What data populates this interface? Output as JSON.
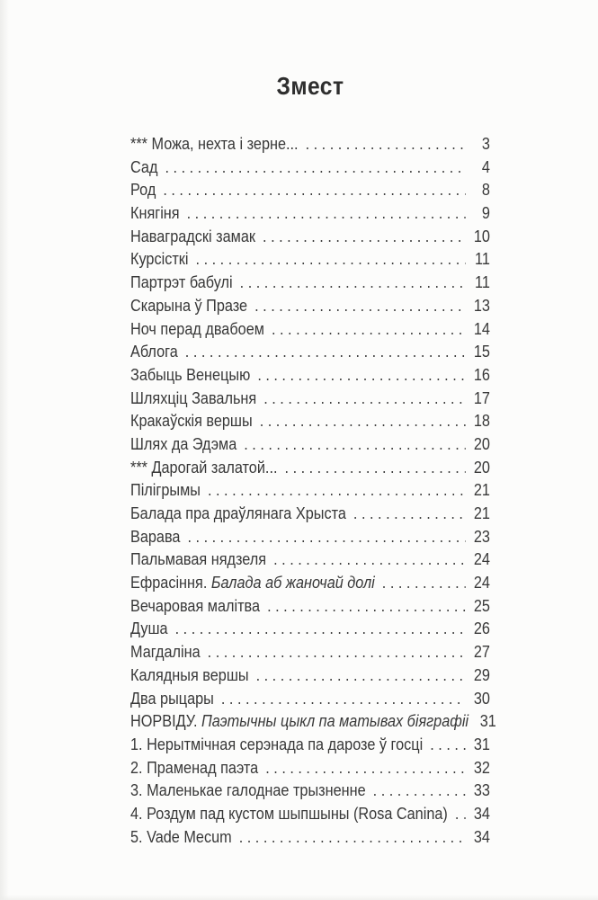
{
  "page": {
    "title": "Змест",
    "toc": {
      "entries": [
        {
          "text": "*** Можа, нехта і зерне...",
          "italic": "",
          "page": "3"
        },
        {
          "text": "Сад",
          "italic": "",
          "page": "4"
        },
        {
          "text": "Род",
          "italic": "",
          "page": "8"
        },
        {
          "text": "Княгіня",
          "italic": "",
          "page": "9"
        },
        {
          "text": "Наваградскі замак",
          "italic": "",
          "page": "10"
        },
        {
          "text": "Курсісткі",
          "italic": "",
          "page": "11"
        },
        {
          "text": "Партрэт бабулі",
          "italic": "",
          "page": "11"
        },
        {
          "text": "Скарына ў Празе",
          "italic": "",
          "page": "13"
        },
        {
          "text": "Ноч перад двабоем",
          "italic": "",
          "page": "14"
        },
        {
          "text": "Аблога",
          "italic": "",
          "page": "15"
        },
        {
          "text": "Забыць Венецыю",
          "italic": "",
          "page": "16"
        },
        {
          "text": "Шляхціц Завальня",
          "italic": "",
          "page": "17"
        },
        {
          "text": "Кракаўскія вершы",
          "italic": "",
          "page": "18"
        },
        {
          "text": "Шлях да Эдэма",
          "italic": "",
          "page": "20"
        },
        {
          "text": "*** Дарогай залатой...",
          "italic": "",
          "page": "20"
        },
        {
          "text": "Пілігрымы",
          "italic": "",
          "page": "21"
        },
        {
          "text": "Балада пра драўлянага Хрыста",
          "italic": "",
          "page": "21"
        },
        {
          "text": "Варава",
          "italic": "",
          "page": "23"
        },
        {
          "text": "Пальмавая нядзеля",
          "italic": "",
          "page": "24"
        },
        {
          "text": "Ефрасіння. ",
          "italic": "Балада аб жаночай долі",
          "page": "24"
        },
        {
          "text": "Вечаровая малітва",
          "italic": "",
          "page": "25"
        },
        {
          "text": "Душа",
          "italic": "",
          "page": "26"
        },
        {
          "text": "Магдаліна",
          "italic": "",
          "page": "27"
        },
        {
          "text": "Калядныя вершы",
          "italic": "",
          "page": "29"
        },
        {
          "text": "Два рыцары",
          "italic": "",
          "page": "30"
        },
        {
          "text": "НОРВІДУ. ",
          "italic": "Паэтычны цыкл па матывах біяграфіі",
          "page": "31"
        },
        {
          "text": "1. Нерытмічная серэнада па дарозе ў госці",
          "italic": "",
          "page": "31"
        },
        {
          "text": "2. Праменад паэта",
          "italic": "",
          "page": "32"
        },
        {
          "text": "3. Маленькае галоднае трызненне",
          "italic": "",
          "page": "33"
        },
        {
          "text": "4. Роздум пад кустом шыпшыны (Rosa Canina)",
          "italic": "",
          "page": "34"
        },
        {
          "text": "5. Vade Mecum",
          "italic": "",
          "page": "34"
        }
      ]
    }
  }
}
